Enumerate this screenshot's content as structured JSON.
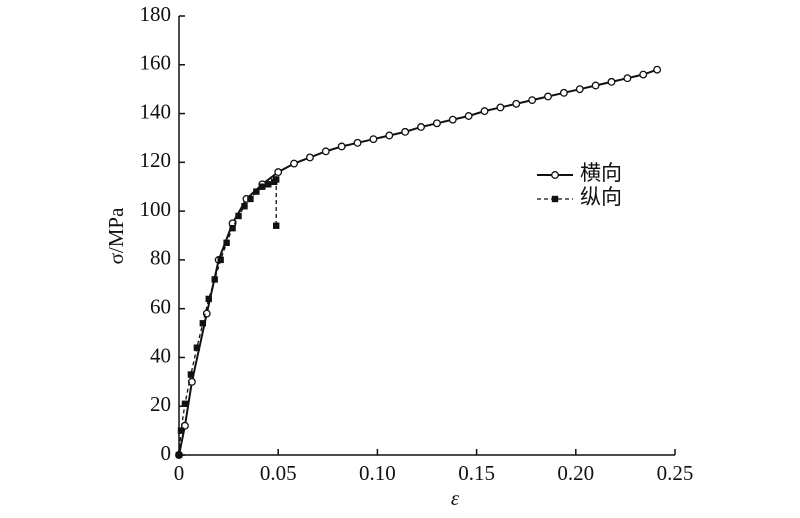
{
  "chart_data": {
    "type": "line",
    "x_label": "ε",
    "y_label": "σ/MPa",
    "xlim": [
      0,
      0.25
    ],
    "xticks": [
      0,
      0.05,
      {
        "value": 0.1,
        "label": "0.10"
      },
      0.15,
      {
        "value": 0.2,
        "label": "0.20"
      },
      0.25
    ],
    "ylim": [
      0,
      180
    ],
    "yticks": [
      0,
      20,
      40,
      60,
      80,
      100,
      120,
      140,
      160,
      180
    ],
    "series": [
      {
        "name": "横向",
        "color": "#111111",
        "marker": "open-circle",
        "dash": false,
        "x": [
          0,
          0.003,
          0.0065,
          0.014,
          0.02,
          0.027,
          0.034,
          0.042,
          0.05,
          0.058,
          0.066,
          0.074,
          0.082,
          0.09,
          0.098,
          0.106,
          0.114,
          0.122,
          0.13,
          0.138,
          0.146,
          0.154,
          0.162,
          0.17,
          0.178,
          0.186,
          0.194,
          0.202,
          0.21,
          0.218,
          0.226,
          0.234,
          0.241
        ],
        "values": [
          0,
          12,
          30,
          58,
          80,
          95,
          105,
          111,
          116,
          119.5,
          122,
          124.5,
          126.5,
          128,
          129.5,
          131,
          132.5,
          134.5,
          136,
          137.5,
          139,
          141,
          142.5,
          144,
          145.5,
          147,
          148.5,
          150,
          151.5,
          153,
          154.5,
          156,
          158
        ]
      },
      {
        "name": "纵向",
        "color": "#111111",
        "marker": "filled-square",
        "dash": true,
        "x": [
          0,
          0.001,
          0.003,
          0.006,
          0.009,
          0.012,
          0.015,
          0.018,
          0.021,
          0.024,
          0.027,
          0.03,
          0.033,
          0.036,
          0.039,
          0.042,
          0.045,
          0.048,
          0.049,
          0.049
        ],
        "values": [
          0,
          10,
          21,
          33,
          44,
          54,
          64,
          72,
          80,
          87,
          93,
          98,
          102,
          105,
          108,
          110,
          111,
          112,
          113,
          94
        ]
      }
    ]
  }
}
